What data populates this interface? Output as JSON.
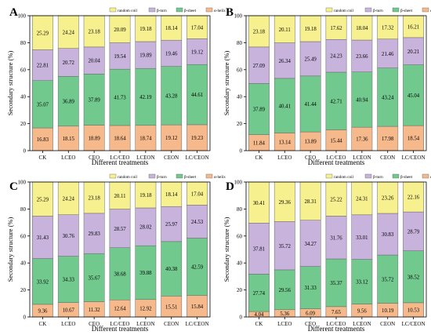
{
  "legend": [
    {
      "key": "random_coil",
      "label": "random coil",
      "color": "#f7f08f"
    },
    {
      "key": "beta_turn",
      "label": "β-turn",
      "color": "#c7b3dc"
    },
    {
      "key": "beta_sheet",
      "label": "β-sheet",
      "color": "#71c98e"
    },
    {
      "key": "alpha_helix",
      "label": "α-helix",
      "color": "#f5b98c"
    }
  ],
  "chart_data": [
    {
      "panel": "A",
      "type": "bar",
      "stacked": true,
      "categories": [
        "CK",
        "LCEO",
        "CEO",
        "LC/CEO",
        "LCEON",
        "CEON",
        "LC/CEON"
      ],
      "xlabel": "Different treatments",
      "ylabel": "Secondary structure (%)",
      "ylim": [
        0,
        100
      ],
      "yticks": [
        0,
        20,
        40,
        60,
        80,
        100
      ],
      "legend_position": "top-right",
      "series": [
        {
          "name": "α-helix",
          "color": "#f5b98c",
          "values": [
            16.83,
            18.15,
            18.89,
            18.64,
            18.74,
            19.12,
            19.23
          ]
        },
        {
          "name": "β-sheet",
          "color": "#71c98e",
          "values": [
            35.07,
            36.89,
            37.89,
            41.73,
            42.19,
            43.28,
            44.61
          ]
        },
        {
          "name": "β-turn",
          "color": "#c7b3dc",
          "values": [
            22.81,
            20.72,
            20.04,
            19.54,
            19.89,
            19.46,
            19.12
          ]
        },
        {
          "name": "random coil",
          "color": "#f7f08f",
          "values": [
            25.29,
            24.24,
            23.18,
            20.09,
            19.18,
            18.14,
            17.04
          ]
        }
      ]
    },
    {
      "panel": "B",
      "type": "bar",
      "stacked": true,
      "categories": [
        "CK",
        "LCEO",
        "CEO",
        "LC/CEO",
        "LCEON",
        "CEON",
        "LC/CEON"
      ],
      "xlabel": "Different treatments",
      "ylabel": "Secondary structure (%)",
      "ylim": [
        0,
        100
      ],
      "yticks": [
        0,
        20,
        40,
        60,
        80,
        100
      ],
      "legend_position": "top-right",
      "series": [
        {
          "name": "α-helix",
          "color": "#f5b98c",
          "values": [
            11.84,
            13.14,
            13.89,
            15.44,
            17.36,
            17.98,
            18.54
          ]
        },
        {
          "name": "β-sheet",
          "color": "#71c98e",
          "values": [
            37.89,
            40.41,
            41.44,
            42.71,
            40.94,
            43.24,
            45.04
          ]
        },
        {
          "name": "β-turn",
          "color": "#c7b3dc",
          "values": [
            27.09,
            26.34,
            25.49,
            24.23,
            23.66,
            21.46,
            20.21
          ]
        },
        {
          "name": "random coil",
          "color": "#f7f08f",
          "values": [
            23.18,
            20.11,
            19.18,
            17.62,
            18.04,
            17.32,
            16.21
          ]
        }
      ]
    },
    {
      "panel": "C",
      "type": "bar",
      "stacked": true,
      "categories": [
        "CK",
        "LCEO",
        "CEO",
        "LC/CEO",
        "LCEON",
        "CEON",
        "LC/CEON"
      ],
      "xlabel": "Different treatments",
      "ylabel": "Secondary structure (%)",
      "ylim": [
        0,
        100
      ],
      "yticks": [
        0,
        20,
        40,
        60,
        80,
        100
      ],
      "legend_position": "top-right",
      "series": [
        {
          "name": "α-helix",
          "color": "#f5b98c",
          "values": [
            9.36,
            10.67,
            11.32,
            12.64,
            12.92,
            15.51,
            15.84
          ]
        },
        {
          "name": "β-sheet",
          "color": "#71c98e",
          "values": [
            33.92,
            34.33,
            35.67,
            38.68,
            39.88,
            40.38,
            42.59
          ]
        },
        {
          "name": "β-turn",
          "color": "#c7b3dc",
          "values": [
            31.43,
            30.76,
            29.83,
            28.57,
            28.02,
            25.97,
            24.53
          ]
        },
        {
          "name": "random coil",
          "color": "#f7f08f",
          "values": [
            25.29,
            24.24,
            23.18,
            20.11,
            19.18,
            18.14,
            17.04
          ]
        }
      ]
    },
    {
      "panel": "D",
      "type": "bar",
      "stacked": true,
      "categories": [
        "CK",
        "LCEO",
        "CEO",
        "LC/CEO",
        "LCEON",
        "CEON",
        "LC/CEON"
      ],
      "xlabel": "Different treatments",
      "ylabel": "Secondary structure (%)",
      "ylim": [
        0,
        100
      ],
      "yticks": [
        0,
        20,
        40,
        60,
        80,
        100
      ],
      "legend_position": "top-right",
      "series": [
        {
          "name": "α-helix",
          "color": "#f5b98c",
          "values": [
            4.04,
            5.36,
            6.09,
            7.65,
            9.56,
            10.19,
            10.53
          ]
        },
        {
          "name": "β-sheet",
          "color": "#71c98e",
          "values": [
            27.74,
            29.56,
            31.33,
            35.37,
            33.12,
            35.72,
            38.52
          ]
        },
        {
          "name": "β-turn",
          "color": "#c7b3dc",
          "values": [
            37.81,
            35.72,
            34.27,
            31.76,
            33.01,
            30.83,
            28.79
          ]
        },
        {
          "name": "random coil",
          "color": "#f7f08f",
          "values": [
            30.41,
            29.36,
            28.31,
            25.22,
            24.31,
            23.26,
            22.16
          ]
        }
      ]
    }
  ]
}
